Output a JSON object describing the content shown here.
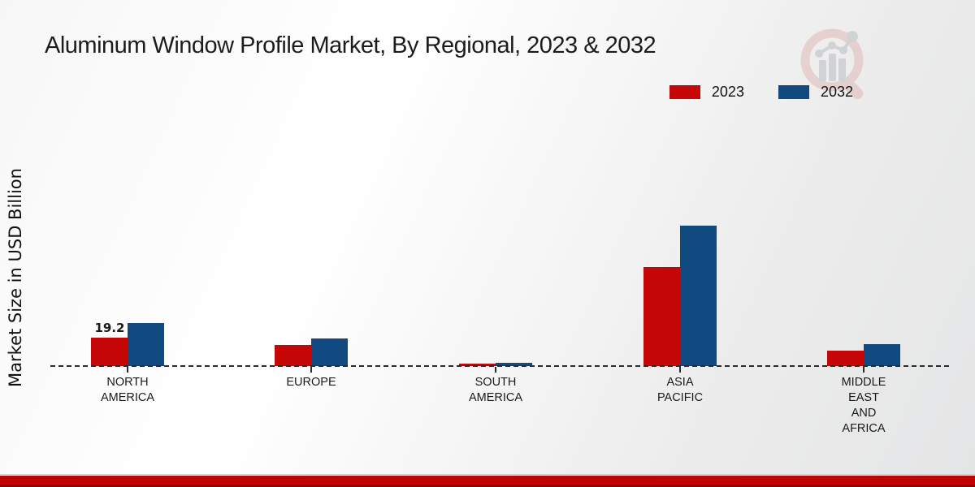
{
  "title": "Aluminum Window Profile Market, By Regional, 2023 & 2032",
  "ylabel": "Market Size in USD Billion",
  "legend": {
    "items": [
      {
        "label": "2023",
        "color": "#c50707"
      },
      {
        "label": "2032",
        "color": "#114a80"
      }
    ]
  },
  "colors": {
    "series_2023": "#c50707",
    "series_2032": "#114a80",
    "footer_stripe": "#c00404",
    "footer_stripe_edge": "#7e0a0a",
    "baseline": "#2b2b2b"
  },
  "watermark": {
    "name": "market-research-future-logo"
  },
  "annotation": {
    "text": "19.2",
    "category": "NORTH AMERICA",
    "series": "2023"
  },
  "chart_data": {
    "type": "bar",
    "title": "Aluminum Window Profile Market, By Regional, 2023 & 2032",
    "xlabel": "",
    "ylabel": "Market Size in USD Billion",
    "ylim": [
      0,
      100
    ],
    "grid": false,
    "legend_position": "top-right",
    "baseline_style": "dashed",
    "categories": [
      "NORTH AMERICA",
      "EUROPE",
      "SOUTH AMERICA",
      "ASIA PACIFIC",
      "MIDDLE EAST AND AFRICA"
    ],
    "category_label_lines": [
      [
        "NORTH",
        "AMERICA"
      ],
      [
        "EUROPE"
      ],
      [
        "SOUTH",
        "AMERICA"
      ],
      [
        "ASIA",
        "PACIFIC"
      ],
      [
        "MIDDLE",
        "EAST",
        "AND",
        "AFRICA"
      ]
    ],
    "series": [
      {
        "name": "2023",
        "color": "#c50707",
        "values": [
          19.2,
          14.2,
          1.5,
          66.5,
          10.5
        ]
      },
      {
        "name": "2032",
        "color": "#114a80",
        "values": [
          28.7,
          18.7,
          2.1,
          94.0,
          14.6
        ]
      }
    ],
    "data_labels": [
      {
        "series": "2023",
        "category": "NORTH AMERICA",
        "value": 19.2
      }
    ]
  }
}
